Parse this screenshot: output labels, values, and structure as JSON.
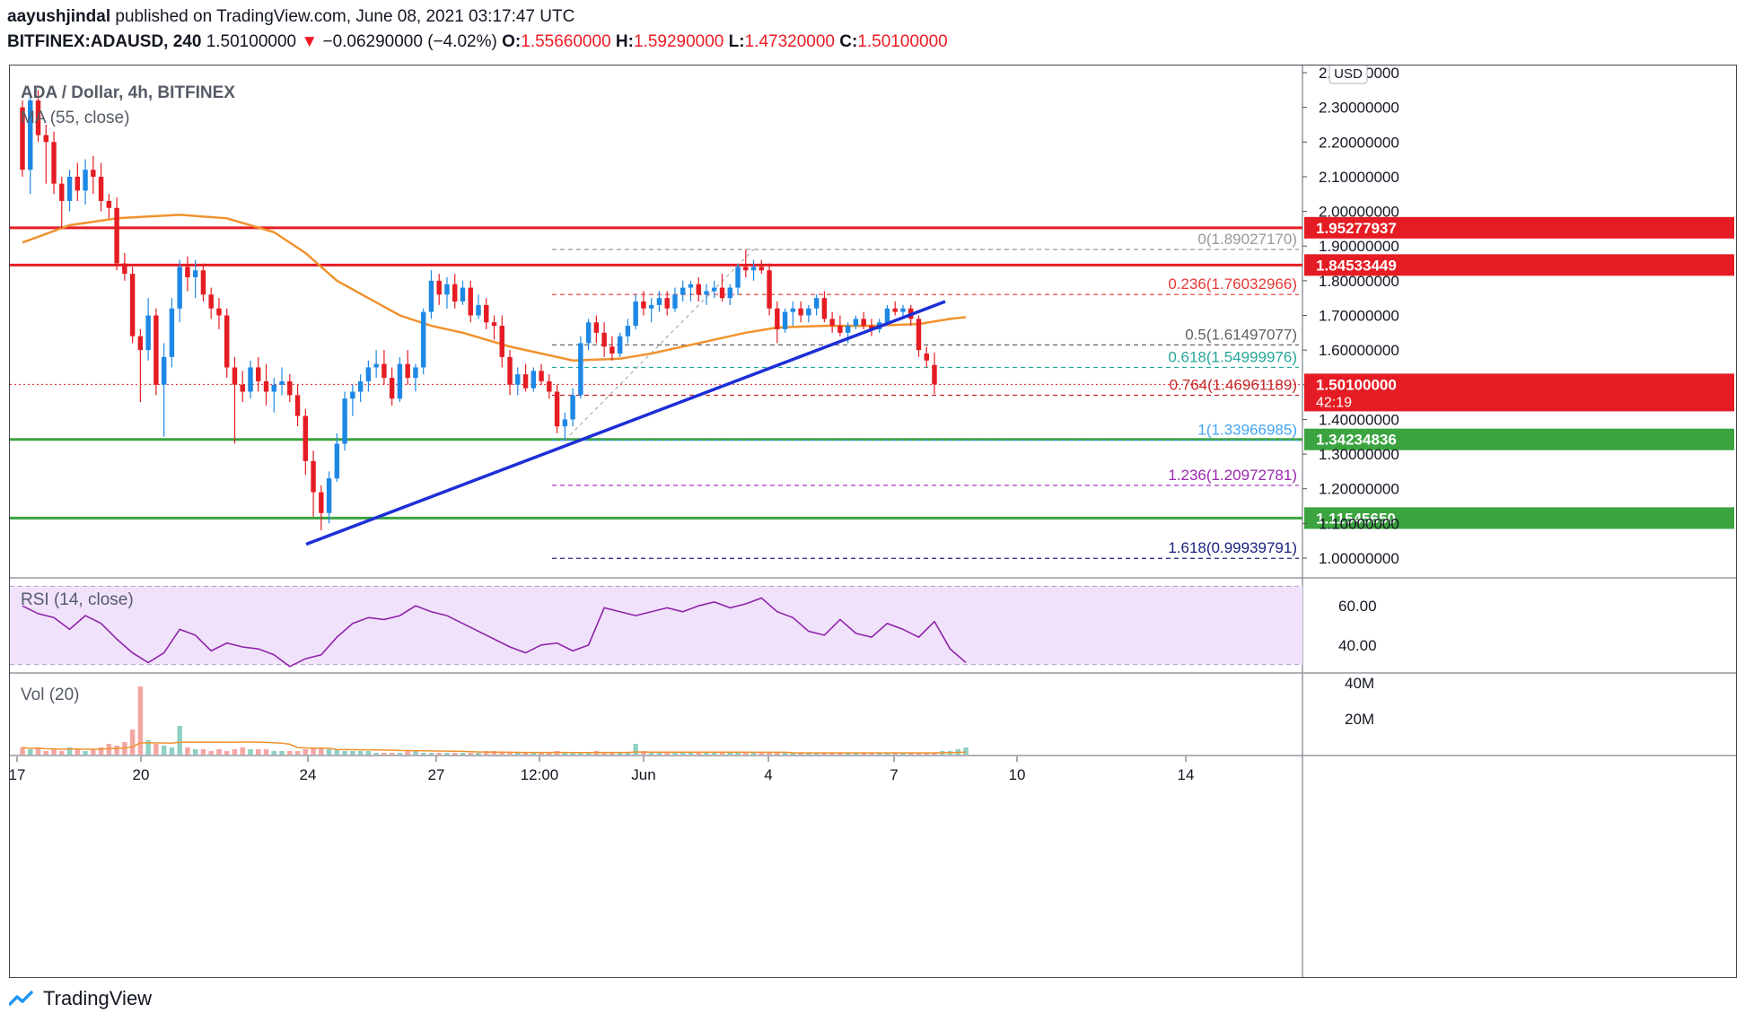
{
  "header": {
    "author": "aayushjindal",
    "published_text": "published on TradingView.com, June 08, 2021 03:17:47 UTC",
    "symbol": "BITFINEX:ADAUSD, 240",
    "last": "1.50100000",
    "arrow": "▼",
    "change": "−0.06290000 (−4.02%)",
    "o_label": "O:",
    "o": "1.55660000",
    "h_label": "H:",
    "h": "1.59290000",
    "l_label": "L:",
    "l": "1.47320000",
    "c_label": "C:",
    "c": "1.50100000"
  },
  "chart_title": "ADA / Dollar, 4h, BITFINEX",
  "ma_label": "MA (55, close)",
  "currency_label": "USD",
  "rsi_label": "RSI (14, close)",
  "vol_label": "Vol (20)",
  "footer": {
    "brand": "TradingView"
  },
  "colors": {
    "up": "#1e88e5",
    "down": "#e51c23",
    "ma": "#f0922e",
    "trend": "#1c2fd6",
    "resistance": "#e51c23",
    "support": "#3ba33f",
    "rsi": "#8e24aa",
    "rsi_band": "#f1e2fb"
  },
  "chart_data": [
    {
      "type": "candlestick",
      "title": "ADA / Dollar, 4h, BITFINEX",
      "ylim": [
        0.93,
        2.41
      ],
      "y_ticks": [
        "2.40000000",
        "2.30000000",
        "2.20000000",
        "2.10000000",
        "2.00000000",
        "1.90000000",
        "1.80000000",
        "1.70000000",
        "1.60000000",
        "1.50000000",
        "1.40000000",
        "1.30000000",
        "1.20000000",
        "1.10000000",
        "1.00000000"
      ],
      "x_ticks": [
        "17",
        "20",
        "24",
        "27",
        "12:00",
        "Jun",
        "4",
        "7",
        "10",
        "14"
      ],
      "candles": [
        [
          2.3,
          2.32,
          2.1,
          2.12
        ],
        [
          2.12,
          2.33,
          2.05,
          2.32
        ],
        [
          2.32,
          2.35,
          2.2,
          2.22
        ],
        [
          2.22,
          2.25,
          2.08,
          2.2
        ],
        [
          2.2,
          2.23,
          2.05,
          2.08
        ],
        [
          2.08,
          2.1,
          1.95,
          2.03
        ],
        [
          2.03,
          2.12,
          2.0,
          2.1
        ],
        [
          2.1,
          2.14,
          2.03,
          2.06
        ],
        [
          2.06,
          2.15,
          2.02,
          2.12
        ],
        [
          2.12,
          2.16,
          2.05,
          2.1
        ],
        [
          2.1,
          2.14,
          2.0,
          2.03
        ],
        [
          2.03,
          2.05,
          1.98,
          2.01
        ],
        [
          2.01,
          2.04,
          1.83,
          1.85
        ],
        [
          1.85,
          1.88,
          1.8,
          1.82
        ],
        [
          1.82,
          1.84,
          1.62,
          1.64
        ],
        [
          1.64,
          1.66,
          1.45,
          1.6
        ],
        [
          1.6,
          1.75,
          1.57,
          1.7
        ],
        [
          1.7,
          1.72,
          1.47,
          1.5
        ],
        [
          1.5,
          1.62,
          1.35,
          1.58
        ],
        [
          1.58,
          1.75,
          1.55,
          1.72
        ],
        [
          1.72,
          1.86,
          1.68,
          1.84
        ],
        [
          1.84,
          1.87,
          1.77,
          1.81
        ],
        [
          1.81,
          1.86,
          1.75,
          1.83
        ],
        [
          1.83,
          1.85,
          1.74,
          1.76
        ],
        [
          1.76,
          1.78,
          1.69,
          1.72
        ],
        [
          1.72,
          1.75,
          1.66,
          1.7
        ],
        [
          1.7,
          1.72,
          1.52,
          1.55
        ],
        [
          1.55,
          1.58,
          1.33,
          1.5
        ],
        [
          1.5,
          1.54,
          1.45,
          1.48
        ],
        [
          1.48,
          1.57,
          1.46,
          1.55
        ],
        [
          1.55,
          1.58,
          1.48,
          1.51
        ],
        [
          1.51,
          1.56,
          1.44,
          1.48
        ],
        [
          1.48,
          1.52,
          1.42,
          1.5
        ],
        [
          1.5,
          1.55,
          1.47,
          1.51
        ],
        [
          1.51,
          1.53,
          1.45,
          1.47
        ],
        [
          1.47,
          1.5,
          1.38,
          1.41
        ],
        [
          1.41,
          1.43,
          1.24,
          1.28
        ],
        [
          1.28,
          1.31,
          1.12,
          1.19
        ],
        [
          1.19,
          1.21,
          1.08,
          1.13
        ],
        [
          1.13,
          1.25,
          1.1,
          1.23
        ],
        [
          1.23,
          1.36,
          1.22,
          1.33
        ],
        [
          1.33,
          1.48,
          1.31,
          1.46
        ],
        [
          1.46,
          1.5,
          1.41,
          1.48
        ],
        [
          1.48,
          1.53,
          1.45,
          1.51
        ],
        [
          1.51,
          1.57,
          1.48,
          1.55
        ],
        [
          1.55,
          1.6,
          1.52,
          1.56
        ],
        [
          1.56,
          1.6,
          1.5,
          1.52
        ],
        [
          1.52,
          1.55,
          1.44,
          1.46
        ],
        [
          1.46,
          1.58,
          1.45,
          1.56
        ],
        [
          1.56,
          1.6,
          1.5,
          1.52
        ],
        [
          1.52,
          1.56,
          1.48,
          1.55
        ],
        [
          1.55,
          1.72,
          1.53,
          1.71
        ],
        [
          1.71,
          1.83,
          1.69,
          1.8
        ],
        [
          1.8,
          1.82,
          1.73,
          1.76
        ],
        [
          1.76,
          1.81,
          1.72,
          1.79
        ],
        [
          1.79,
          1.82,
          1.72,
          1.74
        ],
        [
          1.74,
          1.8,
          1.73,
          1.78
        ],
        [
          1.78,
          1.8,
          1.68,
          1.7
        ],
        [
          1.7,
          1.76,
          1.69,
          1.73
        ],
        [
          1.73,
          1.75,
          1.66,
          1.68
        ],
        [
          1.68,
          1.7,
          1.63,
          1.67
        ],
        [
          1.67,
          1.7,
          1.55,
          1.58
        ],
        [
          1.58,
          1.6,
          1.47,
          1.5
        ],
        [
          1.5,
          1.55,
          1.47,
          1.53
        ],
        [
          1.53,
          1.56,
          1.48,
          1.49
        ],
        [
          1.49,
          1.55,
          1.48,
          1.54
        ],
        [
          1.54,
          1.56,
          1.5,
          1.51
        ],
        [
          1.51,
          1.53,
          1.46,
          1.48
        ],
        [
          1.48,
          1.5,
          1.36,
          1.38
        ],
        [
          1.38,
          1.42,
          1.34,
          1.4
        ],
        [
          1.4,
          1.49,
          1.38,
          1.47
        ],
        [
          1.47,
          1.64,
          1.46,
          1.62
        ],
        [
          1.62,
          1.69,
          1.6,
          1.68
        ],
        [
          1.68,
          1.7,
          1.62,
          1.65
        ],
        [
          1.65,
          1.68,
          1.58,
          1.61
        ],
        [
          1.61,
          1.64,
          1.57,
          1.59
        ],
        [
          1.59,
          1.65,
          1.58,
          1.64
        ],
        [
          1.64,
          1.69,
          1.62,
          1.67
        ],
        [
          1.67,
          1.76,
          1.66,
          1.74
        ],
        [
          1.74,
          1.77,
          1.7,
          1.72
        ],
        [
          1.72,
          1.75,
          1.68,
          1.73
        ],
        [
          1.73,
          1.77,
          1.71,
          1.75
        ],
        [
          1.75,
          1.77,
          1.7,
          1.72
        ],
        [
          1.72,
          1.78,
          1.71,
          1.76
        ],
        [
          1.76,
          1.8,
          1.74,
          1.78
        ],
        [
          1.78,
          1.8,
          1.74,
          1.79
        ],
        [
          1.79,
          1.81,
          1.74,
          1.76
        ],
        [
          1.76,
          1.79,
          1.73,
          1.77
        ],
        [
          1.77,
          1.8,
          1.75,
          1.78
        ],
        [
          1.78,
          1.82,
          1.74,
          1.75
        ],
        [
          1.75,
          1.79,
          1.73,
          1.78
        ],
        [
          1.78,
          1.85,
          1.76,
          1.84
        ],
        [
          1.84,
          1.89,
          1.81,
          1.83
        ],
        [
          1.83,
          1.86,
          1.8,
          1.84
        ],
        [
          1.84,
          1.86,
          1.82,
          1.83
        ],
        [
          1.83,
          1.85,
          1.7,
          1.72
        ],
        [
          1.72,
          1.74,
          1.62,
          1.66
        ],
        [
          1.66,
          1.72,
          1.65,
          1.71
        ],
        [
          1.71,
          1.74,
          1.67,
          1.72
        ],
        [
          1.72,
          1.74,
          1.68,
          1.7
        ],
        [
          1.7,
          1.73,
          1.68,
          1.72
        ],
        [
          1.72,
          1.76,
          1.7,
          1.75
        ],
        [
          1.75,
          1.77,
          1.68,
          1.69
        ],
        [
          1.69,
          1.71,
          1.65,
          1.67
        ],
        [
          1.67,
          1.7,
          1.64,
          1.65
        ],
        [
          1.65,
          1.68,
          1.62,
          1.67
        ],
        [
          1.67,
          1.7,
          1.66,
          1.69
        ],
        [
          1.69,
          1.71,
          1.66,
          1.67
        ],
        [
          1.67,
          1.69,
          1.64,
          1.66
        ],
        [
          1.66,
          1.69,
          1.65,
          1.68
        ],
        [
          1.68,
          1.73,
          1.67,
          1.72
        ],
        [
          1.72,
          1.74,
          1.7,
          1.71
        ],
        [
          1.71,
          1.73,
          1.69,
          1.72
        ],
        [
          1.72,
          1.73,
          1.67,
          1.69
        ],
        [
          1.69,
          1.7,
          1.58,
          1.6
        ],
        [
          1.59,
          1.61,
          1.55,
          1.57
        ],
        [
          1.557,
          1.593,
          1.473,
          1.501
        ]
      ],
      "ma": [
        [
          0,
          1.91
        ],
        [
          6,
          1.96
        ],
        [
          12,
          1.98
        ],
        [
          20,
          1.99
        ],
        [
          26,
          1.98
        ],
        [
          32,
          1.94
        ],
        [
          36,
          1.88
        ],
        [
          40,
          1.8
        ],
        [
          44,
          1.75
        ],
        [
          48,
          1.7
        ],
        [
          52,
          1.67
        ],
        [
          56,
          1.65
        ],
        [
          62,
          1.61
        ],
        [
          66,
          1.59
        ],
        [
          70,
          1.57
        ],
        [
          76,
          1.575
        ],
        [
          80,
          1.59
        ],
        [
          86,
          1.62
        ],
        [
          92,
          1.65
        ],
        [
          96,
          1.665
        ],
        [
          102,
          1.67
        ],
        [
          108,
          1.67
        ],
        [
          114,
          1.675
        ],
        [
          118,
          1.69
        ],
        [
          120,
          1.695
        ]
      ],
      "rsi": {
        "levels": [
          30,
          70
        ],
        "y_ticks": [
          "60.00",
          "40.00"
        ],
        "points": [
          [
            0,
            60
          ],
          [
            2,
            56
          ],
          [
            4,
            54
          ],
          [
            6,
            48
          ],
          [
            8,
            55
          ],
          [
            10,
            51
          ],
          [
            12,
            43
          ],
          [
            14,
            36
          ],
          [
            16,
            31
          ],
          [
            18,
            36
          ],
          [
            20,
            48
          ],
          [
            22,
            45
          ],
          [
            24,
            37
          ],
          [
            26,
            41
          ],
          [
            28,
            39
          ],
          [
            30,
            38
          ],
          [
            32,
            35
          ],
          [
            34,
            29
          ],
          [
            36,
            33
          ],
          [
            38,
            35
          ],
          [
            40,
            44
          ],
          [
            42,
            51
          ],
          [
            44,
            54
          ],
          [
            46,
            53
          ],
          [
            48,
            55
          ],
          [
            50,
            60
          ],
          [
            52,
            57
          ],
          [
            54,
            55
          ],
          [
            56,
            51
          ],
          [
            58,
            47
          ],
          [
            60,
            43
          ],
          [
            62,
            39
          ],
          [
            64,
            36
          ],
          [
            66,
            40
          ],
          [
            68,
            41
          ],
          [
            70,
            37
          ],
          [
            72,
            40
          ],
          [
            74,
            59
          ],
          [
            76,
            57
          ],
          [
            78,
            55
          ],
          [
            80,
            57
          ],
          [
            82,
            59
          ],
          [
            84,
            57
          ],
          [
            86,
            60
          ],
          [
            88,
            62
          ],
          [
            90,
            59
          ],
          [
            92,
            61
          ],
          [
            94,
            64
          ],
          [
            96,
            57
          ],
          [
            98,
            54
          ],
          [
            100,
            47
          ],
          [
            102,
            45
          ],
          [
            104,
            53
          ],
          [
            106,
            46
          ],
          [
            108,
            44
          ],
          [
            110,
            51
          ],
          [
            112,
            48
          ],
          [
            114,
            44
          ],
          [
            116,
            52
          ],
          [
            118,
            38
          ],
          [
            120,
            31
          ]
        ]
      },
      "volume": {
        "y_ticks": [
          "40M",
          "20M"
        ],
        "values": [
          4,
          3,
          4,
          2,
          3,
          2,
          4,
          3,
          2,
          3,
          4,
          6,
          5,
          7,
          14,
          38,
          8,
          6,
          5,
          4,
          16,
          4,
          3,
          3,
          2,
          3,
          2,
          3,
          4,
          3,
          3,
          3,
          2,
          2,
          2,
          2,
          3,
          4,
          4,
          3,
          3,
          2,
          2,
          2,
          2,
          1,
          1,
          1,
          1,
          2,
          2,
          1,
          1,
          1,
          1,
          1,
          1,
          1,
          1,
          2,
          2,
          1,
          1,
          1,
          1,
          1,
          1,
          1,
          2,
          1,
          1,
          1,
          1,
          2,
          1,
          1,
          1,
          1,
          6,
          2,
          1,
          1,
          1,
          1,
          1,
          1,
          1,
          1,
          1,
          1,
          1,
          1,
          1,
          1,
          1,
          1,
          1,
          1,
          1,
          1,
          1,
          1,
          1,
          1,
          1,
          1,
          1,
          1,
          1,
          1,
          1,
          1,
          1,
          1,
          1,
          1,
          1,
          2,
          2,
          3,
          4
        ]
      },
      "horizontal_levels": [
        {
          "label": "1.95277937",
          "value": 1.95277937,
          "kind": "resistance"
        },
        {
          "label": "1.84533449",
          "value": 1.84533449,
          "kind": "resistance"
        },
        {
          "label": "1.34234836",
          "value": 1.34234836,
          "kind": "support"
        },
        {
          "label": "1.11545650",
          "value": 1.1154565,
          "kind": "support"
        }
      ],
      "fib_levels": [
        {
          "label": "0(1.89027170)",
          "value": 1.8902717,
          "color": "#999999"
        },
        {
          "label": "0.236(1.76032966)",
          "value": 1.76032966,
          "color": "#e53935"
        },
        {
          "label": "0.5(1.61497077)",
          "value": 1.61497077,
          "color": "#616161"
        },
        {
          "label": "0.618(1.54999976)",
          "value": 1.54999976,
          "color": "#26a69a"
        },
        {
          "label": "0.764(1.46961189)",
          "value": 1.46961189,
          "color": "#c62828"
        },
        {
          "label": "1(1.33966985)",
          "value": 1.33966985,
          "color": "#42a5f5"
        },
        {
          "label": "1.236(1.20972781)",
          "value": 1.20972781,
          "color": "#9c27b0"
        },
        {
          "label": "1.618(0.99939791)",
          "value": 0.99939791,
          "color": "#1a237e"
        }
      ],
      "trendline": [
        [
          37,
          1.04
        ],
        [
          116,
          1.74
        ]
      ],
      "last_price_label": "1.50100000",
      "countdown_label": "42:19"
    }
  ]
}
